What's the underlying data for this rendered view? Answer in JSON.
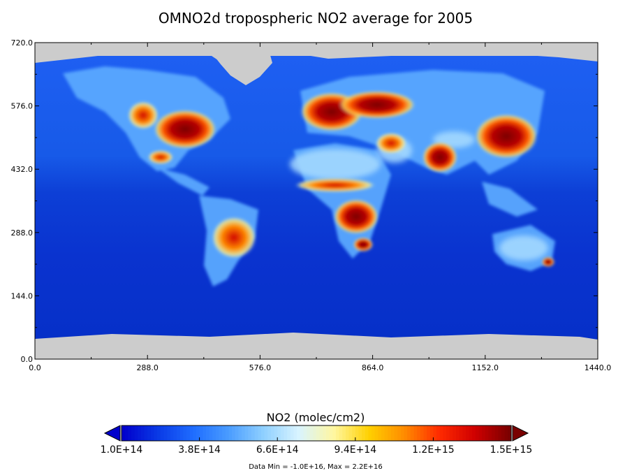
{
  "chart_data": {
    "type": "heatmap",
    "title": "OMNO2d tropospheric NO2 average for 2005",
    "xlabel": "",
    "ylabel": "",
    "xlim": [
      0,
      1440
    ],
    "ylim": [
      0,
      720
    ],
    "x_ticks": [
      "0.0",
      "288.0",
      "576.0",
      "864.0",
      "1152.0",
      "1440.0"
    ],
    "y_ticks": [
      "0.0",
      "144.0",
      "288.0",
      "432.0",
      "576.0",
      "720.0"
    ],
    "x_tick_values": [
      0,
      288,
      576,
      864,
      1152,
      1440
    ],
    "y_tick_values": [
      0,
      144,
      288,
      432,
      576,
      720
    ],
    "missing_data_color": "#cccccc",
    "colorbar": {
      "title": "NO2 (molec/cm2)",
      "tick_labels": [
        "1.0E+14",
        "3.8E+14",
        "6.6E+14",
        "9.4E+14",
        "1.2E+15",
        "1.5E+15"
      ],
      "tick_values": [
        100000000000000.0,
        380000000000000.0,
        660000000000000.0,
        940000000000000.0,
        1200000000000000.0,
        1500000000000000.0
      ],
      "range": [
        100000000000000.0,
        1500000000000000.0
      ],
      "extend": "both",
      "under_color": "#0000cc",
      "over_color": "#7a0000",
      "colors": [
        "#0000cc",
        "#0a3ae6",
        "#1f6dff",
        "#4a9cff",
        "#8fd0ff",
        "#d9f4ff",
        "#fff7a0",
        "#ffd000",
        "#ff8c00",
        "#ff2a00",
        "#d00000",
        "#7a0000"
      ]
    },
    "footer": "Data Min = -1.0E+16, Max = 2.2E+16"
  }
}
